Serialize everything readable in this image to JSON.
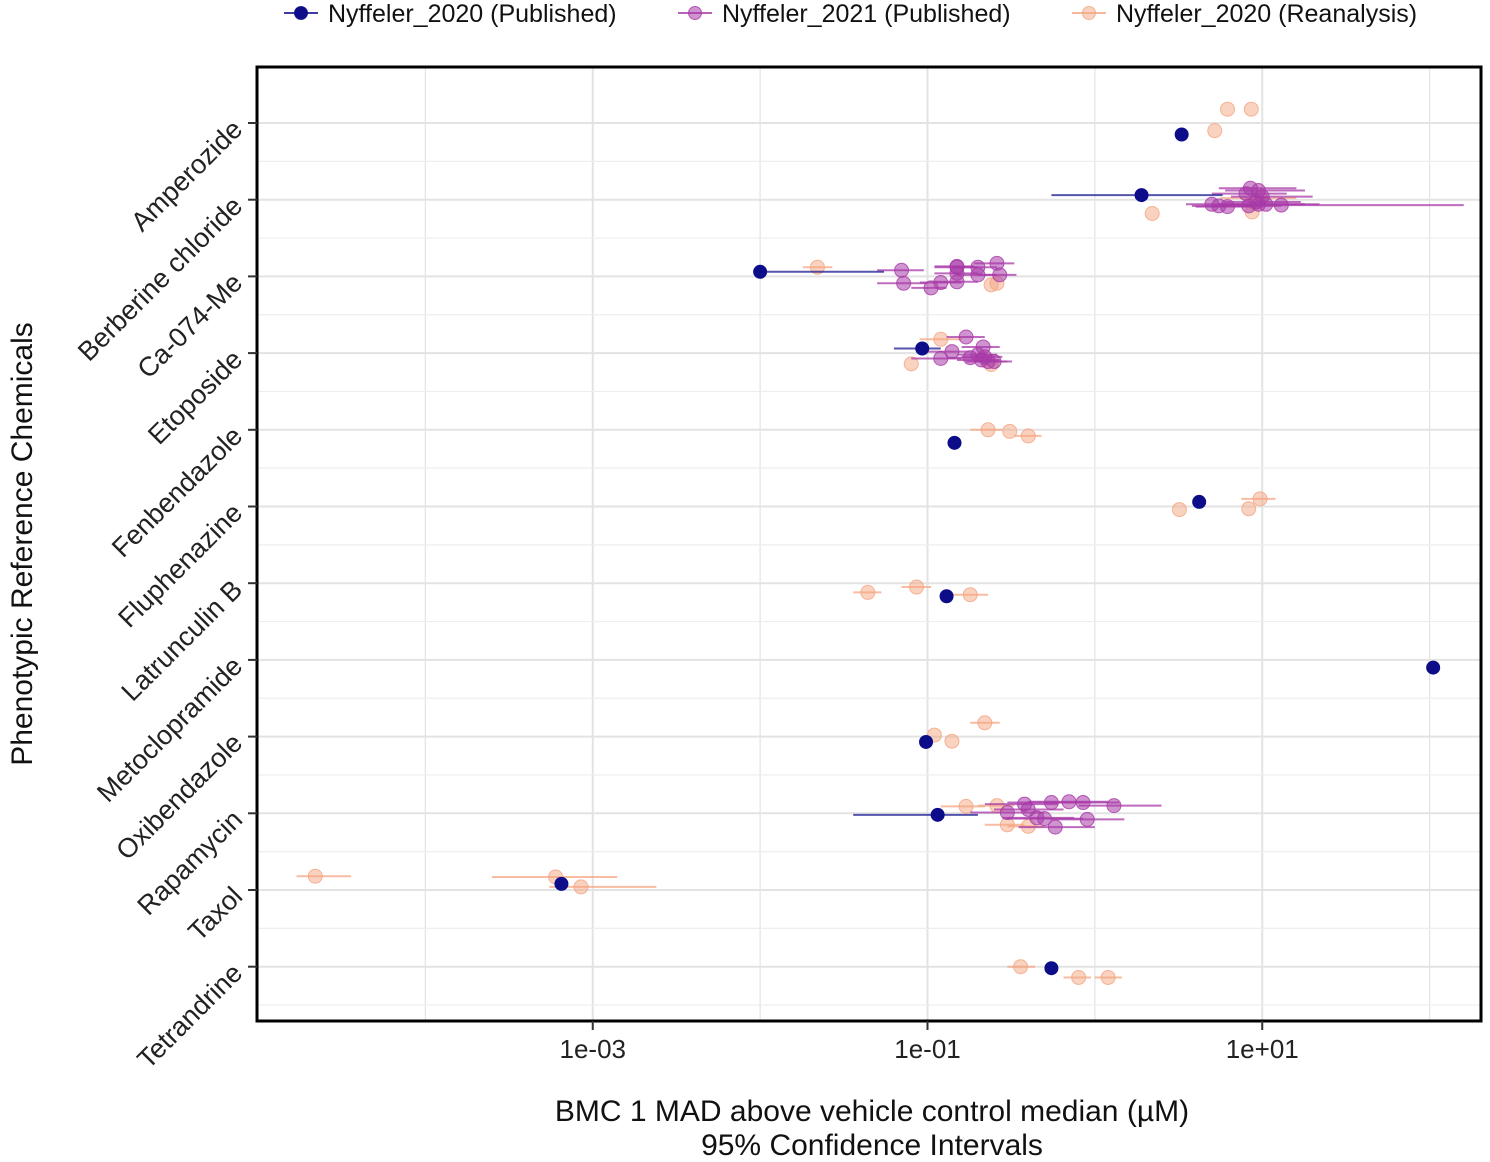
{
  "chart_data": {
    "type": "scatter",
    "subtype": "dot-with-confidence-intervals",
    "xscale": "log10",
    "xlim": [
      1e-05,
      200
    ],
    "x_ticks": [
      0.001,
      0.1,
      10
    ],
    "x_tick_labels": [
      "1e-03",
      "1e-01",
      "1e+01"
    ],
    "xlabel_line1": "BMC 1 MAD above vehicle control median (µM)",
    "xlabel_line2": "95% Confidence Intervals",
    "ylabel": "Phenotypic Reference Chemicals",
    "legend_position": "top",
    "categories": [
      "Amperozide",
      "Berberine chloride",
      "Ca-074-Me",
      "Etoposide",
      "Fenbendazole",
      "Fluphenazine",
      "Latrunculin B",
      "Metoclopramide",
      "Oxibendazole",
      "Rapamycin",
      "Taxol",
      "Tetrandrine"
    ],
    "series": [
      {
        "name": "Nyffeler_2020 (Published)",
        "color": "#0d0d8a",
        "opacity": 1.0,
        "points": [
          {
            "cat": "Amperozide",
            "offset": -0.15,
            "x": 3.3
          },
          {
            "cat": "Berberine chloride",
            "offset": 0.06,
            "x": 1.9,
            "lo": 0.55,
            "hi": 5.8
          },
          {
            "cat": "Ca-074-Me",
            "offset": 0.06,
            "x": 0.01,
            "lo": 0.01,
            "hi": 0.055
          },
          {
            "cat": "Etoposide",
            "offset": 0.06,
            "x": 0.093,
            "lo": 0.063,
            "hi": 0.12
          },
          {
            "cat": "Fenbendazole",
            "offset": -0.17,
            "x": 0.145
          },
          {
            "cat": "Fluphenazine",
            "offset": 0.06,
            "x": 4.2
          },
          {
            "cat": "Latrunculin B",
            "offset": -0.17,
            "x": 0.13
          },
          {
            "cat": "Metoclopramide",
            "offset": -0.1,
            "x": 105
          },
          {
            "cat": "Oxibendazole",
            "offset": -0.07,
            "x": 0.098
          },
          {
            "cat": "Rapamycin",
            "offset": -0.02,
            "x": 0.115,
            "lo": 0.036,
            "hi": 0.2
          },
          {
            "cat": "Taxol",
            "offset": 0.08,
            "x": 0.00065
          },
          {
            "cat": "Tetrandrine",
            "offset": -0.02,
            "x": 0.55
          }
        ]
      },
      {
        "name": "Nyffeler_2021 (Published)",
        "color": "#a83aa8",
        "opacity": 0.55,
        "points": [
          {
            "cat": "Berberine chloride",
            "offset": 0.15,
            "x": 8.5,
            "lo": 5.5,
            "hi": 16
          },
          {
            "cat": "Berberine chloride",
            "offset": 0.12,
            "x": 9.5,
            "lo": 6,
            "hi": 18
          },
          {
            "cat": "Berberine chloride",
            "offset": 0.08,
            "x": 8,
            "lo": 5,
            "hi": 14
          },
          {
            "cat": "Berberine chloride",
            "offset": 0.04,
            "x": 10,
            "lo": 6.5,
            "hi": 20
          },
          {
            "cat": "Berberine chloride",
            "offset": -0.06,
            "x": 5,
            "lo": 3.5,
            "hi": 8
          },
          {
            "cat": "Berberine chloride",
            "offset": -0.08,
            "x": 5.5,
            "lo": 3.8,
            "hi": 9
          },
          {
            "cat": "Berberine chloride",
            "offset": -0.09,
            "x": 6.2,
            "lo": 4,
            "hi": 10
          },
          {
            "cat": "Berberine chloride",
            "offset": -0.08,
            "x": 8.3,
            "lo": 5,
            "hi": 13
          },
          {
            "cat": "Berberine chloride",
            "offset": -0.06,
            "x": 9.5,
            "lo": 5.5,
            "hi": 18
          },
          {
            "cat": "Berberine chloride",
            "offset": -0.06,
            "x": 10.5,
            "lo": 6,
            "hi": 22
          },
          {
            "cat": "Berberine chloride",
            "offset": -0.07,
            "x": 13,
            "lo": 7,
            "hi": 160
          },
          {
            "cat": "Berberine chloride",
            "offset": -0.03,
            "x": 9.2,
            "lo": 6,
            "hi": 17
          },
          {
            "cat": "Ca-074-Me",
            "offset": 0.17,
            "x": 0.26,
            "lo": 0.19,
            "hi": 0.33
          },
          {
            "cat": "Ca-074-Me",
            "offset": 0.13,
            "x": 0.15,
            "lo": 0.11,
            "hi": 0.19
          },
          {
            "cat": "Ca-074-Me",
            "offset": 0.12,
            "x": 0.15,
            "lo": 0.11,
            "hi": 0.2
          },
          {
            "cat": "Ca-074-Me",
            "offset": 0.12,
            "x": 0.2,
            "lo": 0.14,
            "hi": 0.26
          },
          {
            "cat": "Ca-074-Me",
            "offset": 0.08,
            "x": 0.07,
            "lo": 0.05,
            "hi": 0.095
          },
          {
            "cat": "Ca-074-Me",
            "offset": 0.02,
            "x": 0.2,
            "lo": 0.15,
            "hi": 0.26
          },
          {
            "cat": "Ca-074-Me",
            "offset": 0.02,
            "x": 0.27,
            "lo": 0.2,
            "hi": 0.34
          },
          {
            "cat": "Ca-074-Me",
            "offset": 0.04,
            "x": 0.15,
            "lo": 0.11,
            "hi": 0.2
          },
          {
            "cat": "Ca-074-Me",
            "offset": -0.09,
            "x": 0.072,
            "lo": 0.05,
            "hi": 0.1
          },
          {
            "cat": "Ca-074-Me",
            "offset": -0.08,
            "x": 0.12,
            "lo": 0.09,
            "hi": 0.16
          },
          {
            "cat": "Ca-074-Me",
            "offset": -0.07,
            "x": 0.15,
            "lo": 0.11,
            "hi": 0.2
          },
          {
            "cat": "Ca-074-Me",
            "offset": -0.15,
            "x": 0.105,
            "lo": 0.08,
            "hi": 0.13
          },
          {
            "cat": "Etoposide",
            "offset": 0.21,
            "x": 0.17,
            "lo": 0.13,
            "hi": 0.22
          },
          {
            "cat": "Etoposide",
            "offset": 0.08,
            "x": 0.215,
            "lo": 0.16,
            "hi": 0.27
          },
          {
            "cat": "Etoposide",
            "offset": 0.02,
            "x": 0.14,
            "lo": 0.1,
            "hi": 0.18
          },
          {
            "cat": "Etoposide",
            "offset": -0.02,
            "x": 0.2,
            "lo": 0.15,
            "hi": 0.26
          },
          {
            "cat": "Etoposide",
            "offset": -0.05,
            "x": 0.22,
            "lo": 0.16,
            "hi": 0.28
          },
          {
            "cat": "Etoposide",
            "offset": -0.07,
            "x": 0.12,
            "lo": 0.08,
            "hi": 0.16
          },
          {
            "cat": "Etoposide",
            "offset": -0.06,
            "x": 0.18,
            "lo": 0.13,
            "hi": 0.23
          },
          {
            "cat": "Etoposide",
            "offset": -0.09,
            "x": 0.21,
            "lo": 0.15,
            "hi": 0.27
          },
          {
            "cat": "Etoposide",
            "offset": -0.11,
            "x": 0.25,
            "lo": 0.19,
            "hi": 0.32
          },
          {
            "cat": "Etoposide",
            "offset": -0.11,
            "x": 0.23,
            "lo": 0.17,
            "hi": 0.3
          },
          {
            "cat": "Rapamycin",
            "offset": 0.15,
            "x": 0.7,
            "lo": 0.4,
            "hi": 1.2
          },
          {
            "cat": "Rapamycin",
            "offset": 0.14,
            "x": 0.55,
            "lo": 0.3,
            "hi": 0.9
          },
          {
            "cat": "Rapamycin",
            "offset": 0.14,
            "x": 0.85,
            "lo": 0.5,
            "hi": 1.4
          },
          {
            "cat": "Rapamycin",
            "offset": 0.1,
            "x": 1.3,
            "lo": 0.8,
            "hi": 2.5
          },
          {
            "cat": "Rapamycin",
            "offset": 0.12,
            "x": 0.38,
            "lo": 0.22,
            "hi": 0.6
          },
          {
            "cat": "Rapamycin",
            "offset": 0.05,
            "x": 0.4,
            "lo": 0.25,
            "hi": 0.65
          },
          {
            "cat": "Rapamycin",
            "offset": 0.01,
            "x": 0.3,
            "lo": 0.18,
            "hi": 0.5
          },
          {
            "cat": "Rapamycin",
            "offset": -0.06,
            "x": 0.45,
            "lo": 0.28,
            "hi": 0.75
          },
          {
            "cat": "Rapamycin",
            "offset": -0.07,
            "x": 0.5,
            "lo": 0.3,
            "hi": 0.85
          },
          {
            "cat": "Rapamycin",
            "offset": -0.08,
            "x": 0.9,
            "lo": 0.55,
            "hi": 1.5
          },
          {
            "cat": "Rapamycin",
            "offset": -0.18,
            "x": 0.58,
            "lo": 0.35,
            "hi": 1.0
          }
        ]
      },
      {
        "name": "Nyffeler_2020 (Reanalysis)",
        "color": "#f4a582",
        "opacity": 0.5,
        "points": [
          {
            "cat": "Amperozide",
            "offset": 0.18,
            "x": 6.2
          },
          {
            "cat": "Amperozide",
            "offset": 0.18,
            "x": 8.6
          },
          {
            "cat": "Amperozide",
            "offset": -0.1,
            "x": 5.2
          },
          {
            "cat": "Berberine chloride",
            "offset": -0.18,
            "x": 2.2
          },
          {
            "cat": "Berberine chloride",
            "offset": -0.16,
            "x": 8.7
          },
          {
            "cat": "Berberine chloride",
            "offset": 0.02,
            "x": 9.8,
            "lo": 5.6,
            "hi": 16
          },
          {
            "cat": "Berberine chloride",
            "offset": -0.04,
            "x": 9.0
          },
          {
            "cat": "Ca-074-Me",
            "offset": 0.12,
            "x": 0.022,
            "lo": 0.018,
            "hi": 0.027
          },
          {
            "cat": "Ca-074-Me",
            "offset": -0.11,
            "x": 0.24
          },
          {
            "cat": "Ca-074-Me",
            "offset": -0.09,
            "x": 0.26
          },
          {
            "cat": "Etoposide",
            "offset": 0.18,
            "x": 0.12,
            "lo": 0.09,
            "hi": 0.16
          },
          {
            "cat": "Etoposide",
            "offset": -0.14,
            "x": 0.08
          },
          {
            "cat": "Etoposide",
            "offset": -0.15,
            "x": 0.24
          },
          {
            "cat": "Fenbendazole",
            "offset": 0.0,
            "x": 0.23,
            "lo": 0.18,
            "hi": 0.28
          },
          {
            "cat": "Fenbendazole",
            "offset": -0.02,
            "x": 0.31
          },
          {
            "cat": "Fenbendazole",
            "offset": -0.08,
            "x": 0.4,
            "lo": 0.33,
            "hi": 0.48
          },
          {
            "cat": "Fluphenazine",
            "offset": 0.1,
            "x": 9.7,
            "lo": 7.5,
            "hi": 12
          },
          {
            "cat": "Fluphenazine",
            "offset": -0.04,
            "x": 3.2
          },
          {
            "cat": "Fluphenazine",
            "offset": -0.03,
            "x": 8.3
          },
          {
            "cat": "Latrunculin B",
            "offset": -0.12,
            "x": 0.044,
            "lo": 0.036,
            "hi": 0.053
          },
          {
            "cat": "Latrunculin B",
            "offset": -0.05,
            "x": 0.086,
            "lo": 0.07,
            "hi": 0.105
          },
          {
            "cat": "Latrunculin B",
            "offset": -0.15,
            "x": 0.18,
            "lo": 0.14,
            "hi": 0.23
          },
          {
            "cat": "Oxibendazole",
            "offset": 0.18,
            "x": 0.22,
            "lo": 0.18,
            "hi": 0.27
          },
          {
            "cat": "Oxibendazole",
            "offset": 0.02,
            "x": 0.11
          },
          {
            "cat": "Oxibendazole",
            "offset": -0.06,
            "x": 0.14
          },
          {
            "cat": "Rapamycin",
            "offset": 0.09,
            "x": 0.17,
            "lo": 0.12,
            "hi": 0.22
          },
          {
            "cat": "Rapamycin",
            "offset": 0.1,
            "x": 0.26,
            "lo": 0.2,
            "hi": 0.33
          },
          {
            "cat": "Rapamycin",
            "offset": -0.15,
            "x": 0.3,
            "lo": 0.22,
            "hi": 0.38
          },
          {
            "cat": "Rapamycin",
            "offset": -0.17,
            "x": 0.4,
            "lo": 0.3,
            "hi": 0.5
          },
          {
            "cat": "Taxol",
            "offset": 0.18,
            "x": 2.2e-05,
            "lo": 1.7e-05,
            "hi": 3.6e-05
          },
          {
            "cat": "Taxol",
            "offset": 0.17,
            "x": 0.0006,
            "lo": 0.00025,
            "hi": 0.0014
          },
          {
            "cat": "Taxol",
            "offset": 0.04,
            "x": 0.00085,
            "lo": 0.00055,
            "hi": 0.0024
          },
          {
            "cat": "Tetrandrine",
            "offset": 0.0,
            "x": 0.36,
            "lo": 0.3,
            "hi": 0.44
          },
          {
            "cat": "Tetrandrine",
            "offset": -0.14,
            "x": 0.8,
            "lo": 0.65,
            "hi": 0.95
          },
          {
            "cat": "Tetrandrine",
            "offset": -0.14,
            "x": 1.2,
            "lo": 1.0,
            "hi": 1.45
          }
        ]
      }
    ]
  }
}
